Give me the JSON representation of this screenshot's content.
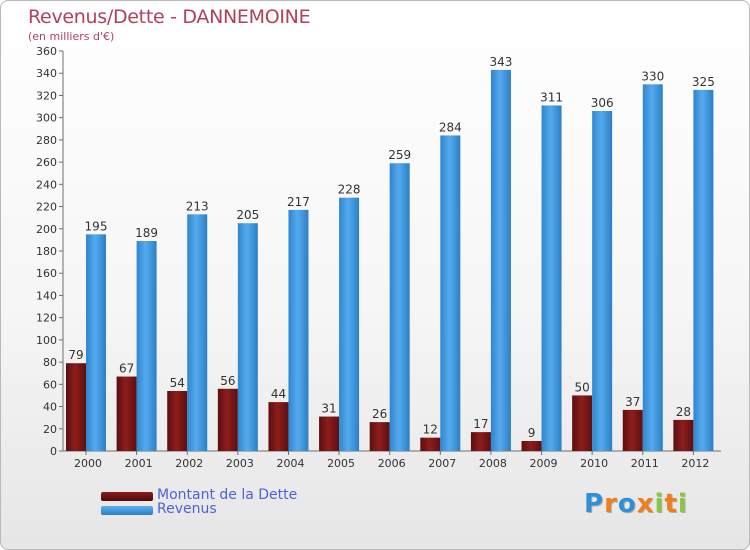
{
  "chart_data": {
    "type": "bar",
    "title": "Revenus/Dette - DANNEMOINE",
    "subtitle": "(en milliers d'€)",
    "categories": [
      "2000",
      "2001",
      "2002",
      "2003",
      "2004",
      "2005",
      "2006",
      "2007",
      "2008",
      "2009",
      "2010",
      "2011",
      "2012"
    ],
    "series": [
      {
        "name": "Montant de la Dette",
        "color": "#8b1a1a",
        "values": [
          79,
          67,
          54,
          56,
          44,
          31,
          26,
          12,
          17,
          9,
          50,
          37,
          28
        ]
      },
      {
        "name": "Revenus",
        "color": "#3f97dd",
        "values": [
          195,
          189,
          213,
          205,
          217,
          228,
          259,
          284,
          343,
          311,
          306,
          330,
          325
        ]
      }
    ],
    "ylim": [
      0,
      360
    ],
    "yticks": [
      0,
      20,
      40,
      60,
      80,
      100,
      120,
      140,
      160,
      180,
      200,
      220,
      240,
      260,
      280,
      300,
      320,
      340,
      360
    ],
    "grid": false,
    "legend_position": "bottom-left",
    "data_labels": true
  },
  "logo": {
    "letters": [
      {
        "ch": "P",
        "color": "#2f8fd8"
      },
      {
        "ch": "r",
        "color": "#f07f1b"
      },
      {
        "ch": "o",
        "color": "#2f8fd8"
      },
      {
        "ch": "x",
        "color": "#f07f1b"
      },
      {
        "ch": "i",
        "color": "#8cc63f"
      },
      {
        "ch": "t",
        "color": "#f07f1b"
      },
      {
        "ch": "i",
        "color": "#8cc63f"
      }
    ]
  }
}
